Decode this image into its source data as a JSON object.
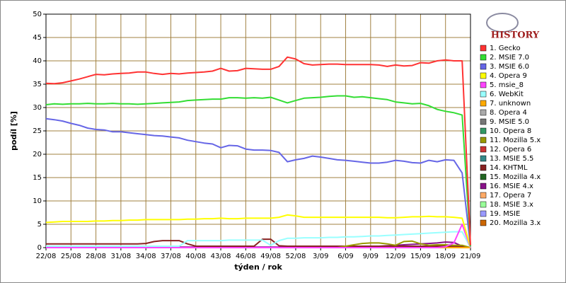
{
  "chart_data": {
    "type": "line",
    "logo": "HISTORY",
    "xlabel": "týden / rok",
    "ylabel": "podíl [%]",
    "categories": [
      "22/08",
      null,
      null,
      "25/08",
      null,
      null,
      "28/08",
      null,
      null,
      "31/08",
      null,
      null,
      "34/08",
      null,
      null,
      "37/08",
      null,
      null,
      "40/08",
      null,
      null,
      "43/08",
      null,
      null,
      "46/08",
      null,
      null,
      "49/08",
      null,
      null,
      "52/08",
      null,
      null,
      "3/09",
      null,
      null,
      "6/09",
      null,
      null,
      "9/09",
      null,
      null,
      "12/09",
      null,
      null,
      "15/09",
      null,
      null,
      "18/09",
      null,
      null,
      "21/09"
    ],
    "ylim": [
      0,
      50
    ],
    "yticks": [
      0,
      5,
      10,
      15,
      20,
      25,
      30,
      35,
      40,
      45,
      50
    ],
    "grid": true,
    "legend": "right",
    "series": [
      {
        "name": "1. Gecko",
        "color": "#ff3333",
        "values": [
          35.2,
          35.1,
          35.3,
          35.7,
          36.1,
          36.6,
          37.1,
          37.0,
          37.2,
          37.3,
          37.4,
          37.6,
          37.6,
          37.3,
          37.1,
          37.3,
          37.2,
          37.4,
          37.5,
          37.6,
          37.8,
          38.4,
          37.8,
          37.9,
          38.4,
          38.3,
          38.2,
          38.2,
          38.8,
          40.8,
          40.4,
          39.4,
          39.1,
          39.2,
          39.3,
          39.3,
          39.2,
          39.2,
          39.2,
          39.2,
          39.1,
          38.8,
          39.1,
          38.9,
          39.0,
          39.6,
          39.5,
          40.0,
          40.2,
          40.0,
          40.0,
          0.5
        ]
      },
      {
        "name": "2. MSIE 7.0",
        "color": "#33dd33",
        "values": [
          30.6,
          30.8,
          30.7,
          30.8,
          30.8,
          30.9,
          30.8,
          30.8,
          30.9,
          30.8,
          30.8,
          30.7,
          30.8,
          30.9,
          31.0,
          31.1,
          31.2,
          31.5,
          31.6,
          31.7,
          31.8,
          31.8,
          32.1,
          32.1,
          32.0,
          32.1,
          32.0,
          32.2,
          31.6,
          31.0,
          31.5,
          32.0,
          32.1,
          32.2,
          32.4,
          32.5,
          32.5,
          32.2,
          32.3,
          32.1,
          31.9,
          31.7,
          31.2,
          31.0,
          30.8,
          30.9,
          30.4,
          29.6,
          29.2,
          28.9,
          28.4,
          0.3
        ]
      },
      {
        "name": "3. MSIE 6.0",
        "color": "#6666e6",
        "values": [
          27.6,
          27.4,
          27.1,
          26.6,
          26.2,
          25.6,
          25.3,
          25.2,
          24.8,
          24.8,
          24.6,
          24.4,
          24.2,
          24.0,
          23.9,
          23.7,
          23.5,
          23.0,
          22.7,
          22.4,
          22.2,
          21.4,
          21.9,
          21.8,
          21.1,
          20.9,
          20.9,
          20.8,
          20.4,
          18.4,
          18.8,
          19.1,
          19.6,
          19.4,
          19.1,
          18.8,
          18.7,
          18.5,
          18.3,
          18.1,
          18.1,
          18.3,
          18.7,
          18.5,
          18.2,
          18.1,
          18.7,
          18.4,
          18.8,
          18.7,
          16.0,
          0.2
        ]
      },
      {
        "name": "4. Opera 9",
        "color": "#ffff00",
        "values": [
          5.4,
          5.5,
          5.6,
          5.6,
          5.6,
          5.6,
          5.7,
          5.7,
          5.8,
          5.8,
          5.9,
          5.9,
          6.0,
          6.0,
          6.0,
          6.0,
          6.0,
          6.1,
          6.1,
          6.2,
          6.2,
          6.3,
          6.2,
          6.2,
          6.3,
          6.3,
          6.3,
          6.3,
          6.5,
          7.0,
          6.8,
          6.5,
          6.5,
          6.5,
          6.5,
          6.5,
          6.5,
          6.5,
          6.5,
          6.5,
          6.5,
          6.4,
          6.4,
          6.5,
          6.6,
          6.6,
          6.7,
          6.6,
          6.6,
          6.5,
          6.3,
          0.1
        ]
      },
      {
        "name": "5. msie_8",
        "color": "#ff44ff",
        "values": [
          0,
          0,
          0,
          0,
          0,
          0,
          0,
          0,
          0,
          0,
          0,
          0,
          0,
          0,
          0,
          0,
          0,
          0,
          0,
          0,
          0,
          0,
          0,
          0,
          0,
          0,
          0,
          0,
          0,
          0,
          0,
          0,
          0,
          0,
          0,
          0,
          0,
          0,
          0,
          0,
          0,
          0,
          0,
          0,
          0,
          0,
          0,
          0,
          0.2,
          1.0,
          5.0,
          0
        ]
      },
      {
        "name": "6. WebKit",
        "color": "#99ffff",
        "values": [
          0.3,
          0.3,
          0.3,
          0.3,
          0.3,
          0.3,
          0.3,
          0.3,
          0.3,
          0.3,
          0.3,
          0.3,
          0.3,
          0.3,
          0.3,
          0.3,
          0.3,
          1.5,
          1.5,
          1.5,
          1.5,
          1.5,
          1.6,
          1.6,
          1.6,
          1.6,
          1.6,
          0.5,
          1.5,
          2.0,
          2.0,
          2.1,
          2.1,
          2.1,
          2.2,
          2.2,
          2.3,
          2.3,
          2.4,
          2.5,
          2.5,
          2.6,
          2.7,
          2.8,
          2.9,
          3.0,
          3.1,
          3.2,
          3.3,
          3.4,
          3.4,
          0
        ]
      },
      {
        "name": "7. unknown",
        "color": "#ffaa00",
        "values": [
          0,
          0,
          0,
          0,
          0,
          0,
          0,
          0,
          0,
          0,
          0,
          0,
          0,
          0,
          0,
          0,
          0,
          0,
          0,
          0,
          0,
          0,
          0,
          0,
          0,
          0,
          0,
          0,
          0,
          0,
          0,
          0,
          0,
          0,
          0,
          0,
          0,
          0,
          0,
          0,
          0,
          0,
          0,
          0,
          0,
          0,
          0,
          0,
          0,
          0,
          0,
          0
        ]
      },
      {
        "name": "8. Opera 4",
        "color": "#aaaaaa",
        "values": [
          0,
          0,
          0,
          0,
          0,
          0,
          0,
          0,
          0,
          0,
          0,
          0,
          0,
          0,
          0,
          0,
          0,
          0,
          0,
          0,
          0,
          0,
          0,
          0,
          0,
          0,
          0,
          0,
          0,
          0,
          0,
          0,
          0,
          0,
          0,
          0,
          0,
          0,
          0,
          0,
          0,
          0,
          0,
          0,
          0,
          0,
          0,
          0,
          0,
          0,
          0,
          0
        ]
      },
      {
        "name": "9. MSIE 5.0",
        "color": "#777777",
        "values": [
          0,
          0,
          0,
          0,
          0,
          0,
          0,
          0,
          0,
          0,
          0,
          0,
          0,
          0,
          0,
          0,
          0,
          0,
          0,
          0,
          0,
          0,
          0,
          0,
          0,
          0,
          0,
          0,
          0,
          0,
          0,
          0,
          0,
          0,
          0,
          0,
          0,
          0,
          0,
          0,
          0,
          0,
          0,
          0,
          0,
          0,
          0,
          0,
          0,
          0,
          0,
          0
        ]
      },
      {
        "name": "10. Opera 8",
        "color": "#339966",
        "values": [
          0,
          0,
          0,
          0,
          0,
          0,
          0,
          0,
          0,
          0,
          0,
          0,
          0,
          0,
          0,
          0,
          0,
          0,
          0,
          0,
          0,
          0,
          0,
          0,
          0,
          0,
          0,
          0,
          0,
          0,
          0,
          0,
          0,
          0,
          0,
          0,
          0,
          0,
          0,
          0,
          0,
          0,
          0,
          0,
          0,
          0,
          0,
          0,
          0,
          0,
          0,
          0
        ]
      },
      {
        "name": "11. Mozilla 5.x",
        "color": "#999900",
        "values": [
          0,
          0,
          0,
          0,
          0,
          0,
          0,
          0,
          0,
          0,
          0,
          0,
          0,
          0,
          0,
          0,
          0,
          0,
          0,
          0,
          0,
          0,
          0,
          0,
          0,
          0,
          0,
          0,
          0,
          0,
          0,
          0,
          0,
          0,
          0,
          0,
          0.3,
          0.6,
          0.9,
          1.0,
          1.0,
          0.8,
          0.5,
          1.3,
          1.4,
          0.8,
          0.5,
          0.6,
          0.6,
          0.5,
          0.5,
          0
        ]
      },
      {
        "name": "12. Opera 6",
        "color": "#cc3333",
        "values": [
          0,
          0,
          0,
          0,
          0,
          0,
          0,
          0,
          0,
          0,
          0,
          0,
          0,
          0,
          0,
          0,
          0,
          0,
          0,
          0,
          0,
          0,
          0,
          0,
          0,
          0,
          0,
          0,
          0,
          0,
          0,
          0,
          0,
          0,
          0,
          0,
          0,
          0,
          0,
          0,
          0,
          0,
          0,
          0,
          0,
          0,
          0,
          0,
          0,
          0,
          0,
          0
        ]
      },
      {
        "name": "13. MSIE 5.5",
        "color": "#338888",
        "values": [
          0,
          0,
          0,
          0,
          0,
          0,
          0,
          0,
          0,
          0,
          0,
          0,
          0,
          0,
          0,
          0,
          0,
          0,
          0,
          0,
          0,
          0,
          0,
          0,
          0,
          0,
          0,
          0,
          0,
          0,
          0,
          0,
          0,
          0,
          0,
          0,
          0,
          0,
          0,
          0,
          0,
          0,
          0,
          0,
          0,
          0,
          0,
          0,
          0,
          0,
          0,
          0
        ]
      },
      {
        "name": "14. KHTML",
        "color": "#882222",
        "values": [
          0.8,
          0.8,
          0.8,
          0.8,
          0.8,
          0.8,
          0.8,
          0.8,
          0.8,
          0.8,
          0.8,
          0.8,
          0.9,
          1.3,
          1.5,
          1.5,
          1.5,
          0.8,
          0.3,
          0.3,
          0.3,
          0.3,
          0.3,
          0.3,
          0.3,
          0.3,
          1.8,
          1.8,
          0.4,
          0.3,
          0.3,
          0.3,
          0.3,
          0.3,
          0.3,
          0.3,
          0.3,
          0.3,
          0.3,
          0.3,
          0.3,
          0.3,
          0.3,
          0.3,
          0.3,
          0.3,
          0.3,
          0.3,
          0.3,
          0.3,
          0.3,
          0
        ]
      },
      {
        "name": "15. Mozilla 4.x",
        "color": "#226622",
        "values": [
          0,
          0,
          0,
          0,
          0,
          0,
          0,
          0,
          0,
          0,
          0,
          0,
          0,
          0,
          0,
          0,
          0,
          0,
          0,
          0,
          0,
          0,
          0,
          0,
          0,
          0,
          0,
          0,
          0,
          0,
          0,
          0,
          0,
          0,
          0,
          0,
          0,
          0,
          0,
          0,
          0,
          0,
          0,
          0,
          0,
          0,
          0,
          0,
          0,
          0,
          0,
          0
        ]
      },
      {
        "name": "16. MSIE 4.x",
        "color": "#881188",
        "values": [
          0.1,
          0.1,
          0.1,
          0.1,
          0.1,
          0.1,
          0.1,
          0.1,
          0.1,
          0.1,
          0.1,
          0.1,
          0.1,
          0.1,
          0.1,
          0.1,
          0.1,
          0.1,
          0.1,
          0.1,
          0.1,
          0.1,
          0.1,
          0.1,
          0.1,
          0.1,
          0.1,
          0.1,
          0.1,
          0.1,
          0.1,
          0.1,
          0.1,
          0.1,
          0.1,
          0.1,
          0.1,
          0.1,
          0.1,
          0.1,
          0.3,
          0.4,
          0.5,
          0.6,
          0.7,
          0.8,
          0.9,
          1.0,
          1.2,
          1.1,
          0.3,
          0
        ]
      },
      {
        "name": "17. Opera 7",
        "color": "#ffaa66",
        "values": [
          0,
          0,
          0,
          0,
          0,
          0,
          0,
          0,
          0,
          0,
          0,
          0,
          0,
          0,
          0,
          0,
          0,
          0,
          0,
          0,
          0,
          0,
          0,
          0,
          0,
          0,
          0,
          0,
          0,
          0,
          0,
          0,
          0,
          0,
          0,
          0,
          0,
          0,
          0,
          0,
          0,
          0,
          0,
          0,
          0,
          0,
          0,
          0,
          0,
          0,
          0,
          0
        ]
      },
      {
        "name": "18. MSIE 3.x",
        "color": "#99ff99",
        "values": [
          0,
          0,
          0,
          0,
          0,
          0,
          0,
          0,
          0,
          0,
          0,
          0,
          0,
          0,
          0,
          0,
          0,
          0,
          0,
          0,
          0,
          0,
          0,
          0,
          0,
          0,
          0,
          0,
          0,
          0,
          0,
          0,
          0,
          0,
          0,
          0,
          0,
          0,
          0,
          0,
          0,
          0,
          0,
          0,
          0,
          0,
          0,
          0,
          0,
          0,
          0,
          0
        ]
      },
      {
        "name": "19. MSIE",
        "color": "#9999ff",
        "values": [
          0,
          0,
          0,
          0,
          0,
          0,
          0,
          0,
          0,
          0,
          0,
          0,
          0,
          0,
          0,
          0,
          0,
          0,
          0,
          0,
          0,
          0,
          0,
          0,
          0,
          0,
          0,
          0,
          0,
          0,
          0,
          0,
          0,
          0,
          0,
          0,
          0,
          0,
          0,
          0,
          0,
          0,
          0,
          0,
          0,
          0,
          0,
          0,
          0,
          0,
          0,
          0
        ]
      },
      {
        "name": "20. Mozilla 3.x",
        "color": "#cc6600",
        "values": [
          0,
          0,
          0,
          0,
          0,
          0,
          0,
          0,
          0,
          0,
          0,
          0,
          0,
          0,
          0,
          0,
          0,
          0,
          0,
          0,
          0,
          0,
          0,
          0,
          0,
          0,
          0,
          0,
          0,
          0,
          0,
          0,
          0,
          0,
          0,
          0,
          0,
          0,
          0,
          0,
          0,
          0,
          0,
          0,
          0,
          0,
          0,
          0,
          0,
          0,
          0,
          0
        ]
      }
    ]
  }
}
